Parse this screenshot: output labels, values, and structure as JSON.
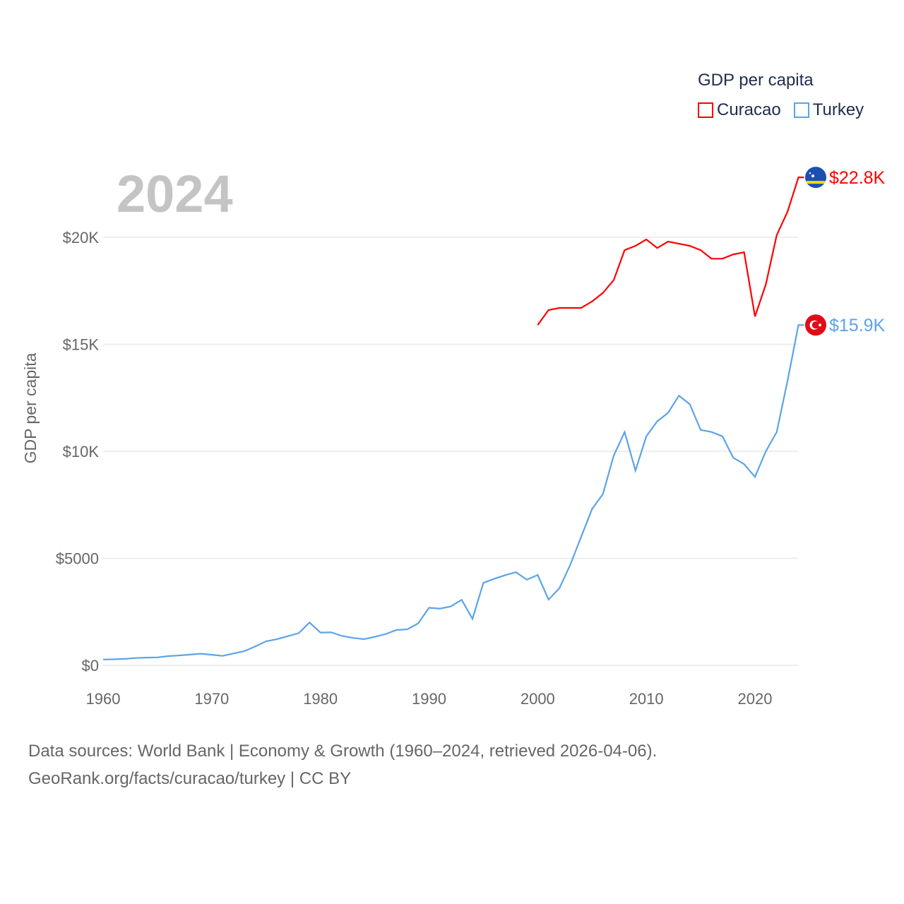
{
  "chart_data": {
    "type": "line",
    "title": "GDP per capita",
    "year_label": "2024",
    "ylabel": "GDP per capita",
    "xlabel": "",
    "xlim": [
      1960,
      2024
    ],
    "ylim": [
      0,
      22800
    ],
    "x_ticks": [
      1960,
      1970,
      1980,
      1990,
      2000,
      2010,
      2020
    ],
    "x_tick_labels": [
      "1960",
      "1970",
      "1980",
      "1990",
      "2000",
      "2010",
      "2020"
    ],
    "y_ticks": [
      0,
      5000,
      10000,
      15000,
      20000
    ],
    "y_tick_labels": [
      "$0",
      "$5000",
      "$10K",
      "$15K",
      "$20K"
    ],
    "grid": true,
    "legend_position": "top-right",
    "series": [
      {
        "name": "Curacao",
        "color": "#ff0000",
        "end_label": "$22.8K",
        "flag": "curacao-flag",
        "x": [
          2000,
          2001,
          2002,
          2003,
          2004,
          2005,
          2006,
          2007,
          2008,
          2009,
          2010,
          2011,
          2012,
          2013,
          2014,
          2015,
          2016,
          2017,
          2018,
          2019,
          2020,
          2021,
          2022,
          2023,
          2024
        ],
        "values": [
          15900,
          16600,
          16700,
          16700,
          16700,
          17000,
          17400,
          18000,
          19400,
          19600,
          19900,
          19500,
          19800,
          19700,
          19600,
          19400,
          19000,
          19000,
          19200,
          19300,
          16300,
          17800,
          20100,
          21200,
          22800
        ]
      },
      {
        "name": "Turkey",
        "color": "#5ba4e8",
        "end_label": "$15.9K",
        "flag": "turkey-flag",
        "x": [
          1960,
          1961,
          1962,
          1963,
          1964,
          1965,
          1966,
          1967,
          1968,
          1969,
          1970,
          1971,
          1972,
          1973,
          1974,
          1975,
          1976,
          1977,
          1978,
          1979,
          1980,
          1981,
          1982,
          1983,
          1984,
          1985,
          1986,
          1987,
          1988,
          1989,
          1990,
          1991,
          1992,
          1993,
          1994,
          1995,
          1996,
          1997,
          1998,
          1999,
          2000,
          2001,
          2002,
          2003,
          2004,
          2005,
          2006,
          2007,
          2008,
          2009,
          2010,
          2011,
          2012,
          2013,
          2014,
          2015,
          2016,
          2017,
          2018,
          2019,
          2020,
          2021,
          2022,
          2023,
          2024
        ],
        "values": [
          270,
          280,
          300,
          340,
          360,
          370,
          430,
          460,
          500,
          540,
          490,
          440,
          550,
          660,
          880,
          1120,
          1220,
          1360,
          1500,
          2000,
          1530,
          1540,
          1370,
          1280,
          1220,
          1330,
          1460,
          1650,
          1680,
          1960,
          2690,
          2650,
          2750,
          3060,
          2170,
          3850,
          4040,
          4210,
          4350,
          4000,
          4220,
          3070,
          3600,
          4700,
          6000,
          7300,
          8000,
          9800,
          10900,
          9100,
          10700,
          11400,
          11800,
          12600,
          12200,
          11000,
          10900,
          10700,
          9700,
          9400,
          8800,
          10000,
          10900,
          13300,
          15900
        ]
      }
    ]
  },
  "footer": {
    "line1": "Data sources: World Bank | Economy & Growth (1960–2024, retrieved 2026-04-06).",
    "line2": "GeoRank.org/facts/curacao/turkey | CC BY"
  }
}
